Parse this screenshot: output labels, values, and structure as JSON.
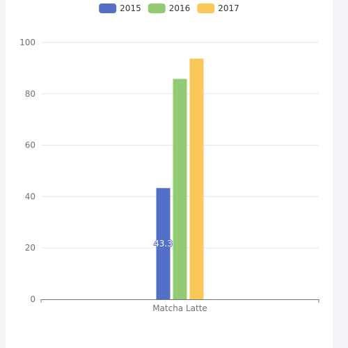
{
  "chart_data": {
    "type": "bar",
    "categories": [
      "Matcha Latte"
    ],
    "series": [
      {
        "name": "2015",
        "values": [
          43.3
        ],
        "color": "#5470c6",
        "label": "43.3"
      },
      {
        "name": "2016",
        "values": [
          85.8
        ],
        "color": "#91cc75"
      },
      {
        "name": "2017",
        "values": [
          93.7
        ],
        "color": "#fac858"
      }
    ],
    "y_ticks": [
      "0",
      "20",
      "40",
      "60",
      "80",
      "100"
    ],
    "ylim": [
      0,
      100
    ],
    "grid": true,
    "legend_position": "top-center"
  }
}
